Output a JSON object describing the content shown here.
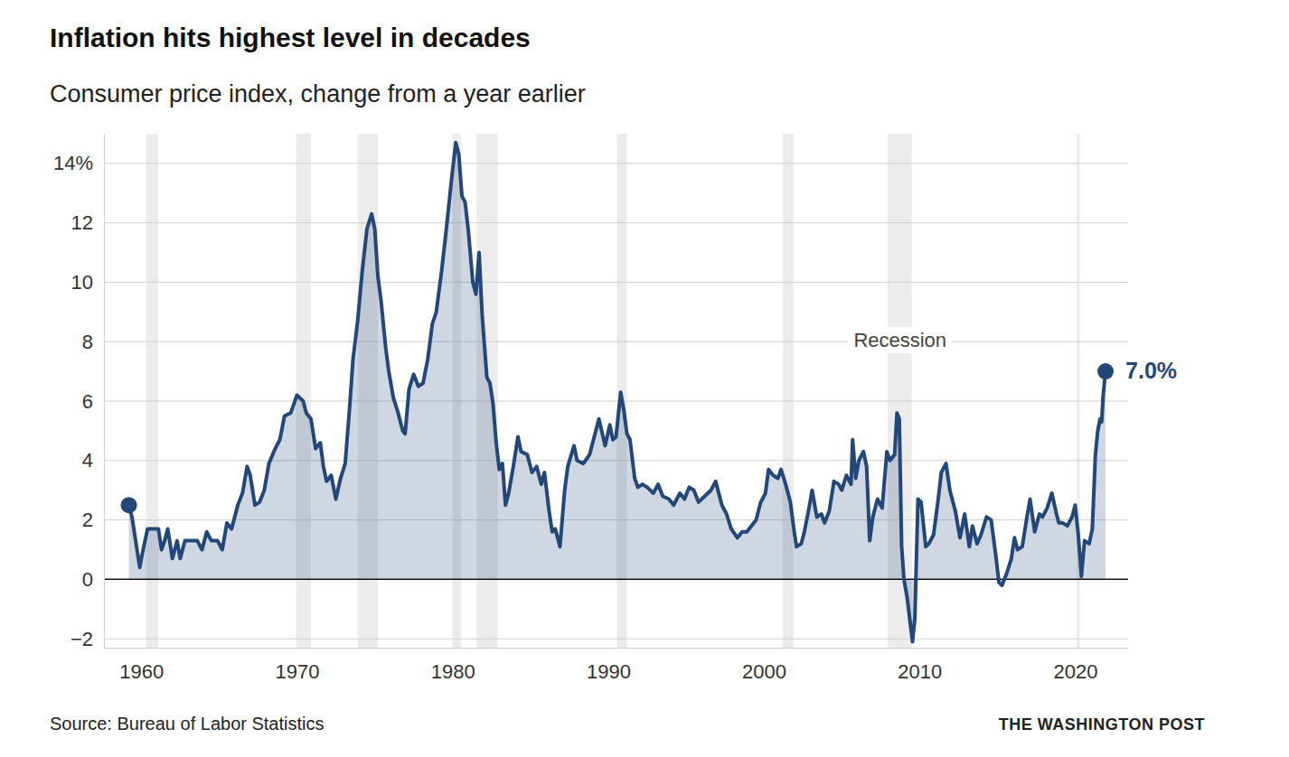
{
  "chart_data": {
    "type": "area",
    "title": "Inflation hits highest level in decades",
    "subtitle": "Consumer price index, change from a year earlier",
    "source": "Source: Bureau of Labor Statistics",
    "credit": "THE WASHINGTON POST",
    "color": "#24477a",
    "marker": "ends",
    "grid": true,
    "xlim": [
      1957.6,
      2023.4
    ],
    "xticks": [
      1960,
      1970,
      1980,
      1990,
      2000,
      2010,
      2020
    ],
    "ylim": [
      -2.3,
      15
    ],
    "yticks": [
      {
        "value": -2,
        "label": "−2"
      },
      0,
      2,
      4,
      6,
      8,
      10,
      12,
      {
        "value": 14,
        "label": "14%"
      }
    ],
    "x": [
      1959.2,
      1959.4,
      1959.9,
      1960.0,
      1960.4,
      1960.8,
      1961.1,
      1961.3,
      1961.5,
      1961.7,
      1962.0,
      1962.3,
      1962.5,
      1962.8,
      1963.2,
      1963.6,
      1963.9,
      1964.2,
      1964.5,
      1964.9,
      1965.2,
      1965.5,
      1965.8,
      1966.2,
      1966.5,
      1966.8,
      1967.0,
      1967.3,
      1967.6,
      1967.9,
      1968.2,
      1968.6,
      1968.9,
      1969.2,
      1969.6,
      1970.0,
      1970.4,
      1970.6,
      1970.9,
      1971.2,
      1971.5,
      1971.7,
      1971.9,
      1972.2,
      1972.5,
      1972.8,
      1973.1,
      1973.4,
      1973.6,
      1973.9,
      1974.2,
      1974.5,
      1974.8,
      1975.0,
      1975.2,
      1975.4,
      1975.7,
      1975.9,
      1976.2,
      1976.5,
      1976.8,
      1976.95,
      1977.2,
      1977.5,
      1977.8,
      1978.1,
      1978.4,
      1978.7,
      1978.95,
      1979.3,
      1979.6,
      1979.9,
      1980.2,
      1980.4,
      1980.6,
      1980.8,
      1981.0,
      1981.3,
      1981.5,
      1981.7,
      1981.9,
      1982.2,
      1982.4,
      1982.6,
      1982.8,
      1983.0,
      1983.2,
      1983.4,
      1983.6,
      1983.9,
      1984.2,
      1984.4,
      1984.8,
      1985.1,
      1985.4,
      1985.7,
      1985.9,
      1986.2,
      1986.4,
      1986.6,
      1986.9,
      1987.2,
      1987.4,
      1987.8,
      1988.0,
      1988.4,
      1988.8,
      1989.2,
      1989.4,
      1989.8,
      1990.1,
      1990.3,
      1990.5,
      1990.8,
      1991.0,
      1991.2,
      1991.4,
      1991.7,
      1991.9,
      1992.2,
      1992.5,
      1992.9,
      1993.2,
      1993.5,
      1993.9,
      1994.2,
      1994.6,
      1994.9,
      1995.2,
      1995.5,
      1995.8,
      1996.2,
      1996.6,
      1996.9,
      1997.3,
      1997.6,
      1997.9,
      1998.3,
      1998.6,
      1998.9,
      1999.2,
      1999.5,
      1999.8,
      2000.1,
      2000.3,
      2000.6,
      2000.9,
      2001.1,
      2001.4,
      2001.7,
      2001.95,
      2002.1,
      2002.4,
      2002.6,
      2002.9,
      2003.1,
      2003.4,
      2003.7,
      2003.9,
      2004.2,
      2004.5,
      2004.8,
      2005.0,
      2005.3,
      2005.6,
      2005.7,
      2005.9,
      2006.1,
      2006.4,
      2006.6,
      2006.8,
      2007.0,
      2007.3,
      2007.6,
      2007.9,
      2008.1,
      2008.4,
      2008.55,
      2008.7,
      2008.85,
      2009.0,
      2009.2,
      2009.55,
      2009.7,
      2009.9,
      2010.1,
      2010.4,
      2010.6,
      2010.9,
      2011.2,
      2011.4,
      2011.7,
      2011.95,
      2012.3,
      2012.6,
      2012.9,
      2013.2,
      2013.4,
      2013.7,
      2013.95,
      2014.3,
      2014.6,
      2014.9,
      2015.1,
      2015.3,
      2015.6,
      2015.9,
      2016.1,
      2016.3,
      2016.6,
      2016.9,
      2017.1,
      2017.4,
      2017.7,
      2017.9,
      2018.2,
      2018.5,
      2018.8,
      2018.95,
      2019.2,
      2019.5,
      2019.8,
      2020.0,
      2020.2,
      2020.4,
      2020.6,
      2020.9,
      2021.1,
      2021.3,
      2021.45,
      2021.6,
      2021.7,
      2021.8,
      2021.95
    ],
    "values": [
      2.5,
      2.1,
      0.4,
      0.7,
      1.7,
      1.7,
      1.7,
      1.0,
      1.3,
      1.7,
      0.7,
      1.3,
      0.7,
      1.3,
      1.3,
      1.3,
      1.0,
      1.6,
      1.3,
      1.3,
      1.0,
      1.9,
      1.7,
      2.5,
      2.9,
      3.8,
      3.5,
      2.5,
      2.6,
      3.0,
      3.9,
      4.4,
      4.7,
      5.5,
      5.6,
      6.2,
      6.0,
      5.6,
      5.4,
      4.4,
      4.6,
      3.8,
      3.3,
      3.5,
      2.7,
      3.4,
      3.9,
      5.9,
      7.4,
      8.7,
      10.4,
      11.8,
      12.3,
      11.8,
      10.2,
      9.4,
      7.8,
      7.0,
      6.1,
      5.6,
      5.0,
      4.9,
      6.4,
      6.9,
      6.5,
      6.6,
      7.4,
      8.6,
      9.0,
      10.4,
      11.8,
      13.3,
      14.7,
      14.3,
      12.9,
      12.7,
      11.8,
      10.0,
      9.6,
      11.0,
      8.9,
      6.8,
      6.6,
      5.9,
      4.6,
      3.7,
      3.9,
      2.5,
      2.9,
      3.8,
      4.8,
      4.3,
      4.2,
      3.6,
      3.8,
      3.2,
      3.6,
      2.3,
      1.6,
      1.7,
      1.1,
      3.0,
      3.8,
      4.5,
      4.0,
      3.9,
      4.2,
      5.0,
      5.4,
      4.5,
      5.2,
      4.7,
      4.8,
      6.3,
      5.7,
      4.9,
      4.7,
      3.4,
      3.1,
      3.2,
      3.1,
      2.9,
      3.2,
      2.8,
      2.7,
      2.5,
      2.9,
      2.7,
      3.1,
      3.0,
      2.6,
      2.8,
      3.0,
      3.3,
      2.5,
      2.2,
      1.7,
      1.4,
      1.6,
      1.6,
      1.8,
      2.0,
      2.6,
      2.9,
      3.7,
      3.5,
      3.4,
      3.7,
      3.2,
      2.6,
      1.6,
      1.1,
      1.2,
      1.6,
      2.4,
      3.0,
      2.1,
      2.2,
      1.9,
      2.3,
      3.3,
      3.2,
      3.0,
      3.5,
      3.2,
      4.7,
      3.4,
      4.0,
      4.3,
      3.8,
      1.3,
      2.1,
      2.7,
      2.4,
      4.3,
      4.0,
      4.2,
      5.6,
      5.4,
      1.1,
      0.0,
      -0.6,
      -2.1,
      -1.3,
      2.7,
      2.6,
      1.1,
      1.2,
      1.5,
      2.7,
      3.6,
      3.9,
      3.0,
      2.3,
      1.4,
      2.2,
      1.1,
      1.8,
      1.2,
      1.5,
      2.1,
      2.0,
      0.8,
      -0.1,
      -0.2,
      0.2,
      0.7,
      1.4,
      1.0,
      1.1,
      2.1,
      2.7,
      1.6,
      2.2,
      2.1,
      2.4,
      2.9,
      2.2,
      1.9,
      1.9,
      1.8,
      2.1,
      2.5,
      1.5,
      0.1,
      1.3,
      1.2,
      1.7,
      4.2,
      5.0,
      5.4,
      5.3,
      6.2,
      7.0
    ],
    "recessions": [
      [
        1960.3,
        1961.1
      ],
      [
        1969.95,
        1970.9
      ],
      [
        1973.9,
        1975.2
      ],
      [
        1980.0,
        1980.55
      ],
      [
        1981.55,
        1982.9
      ],
      [
        1990.55,
        1991.2
      ],
      [
        2001.2,
        2001.9
      ],
      [
        2007.95,
        2009.5
      ],
      [
        2020.1,
        2020.3
      ]
    ],
    "annotations": [
      {
        "text": "Recession",
        "x": 2008.75,
        "y": 8
      },
      {
        "text": "7.0%",
        "x": 2021.95,
        "y": 7
      }
    ]
  }
}
